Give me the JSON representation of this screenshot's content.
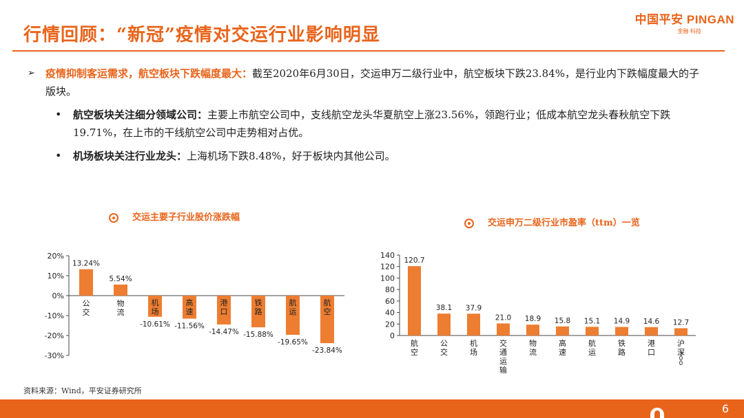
{
  "header": {
    "title": "行情回顾：“新冠”疫情对交运行业影响明显",
    "logo_main": "中国平安 PINGAN",
    "logo_sub": "金融·科技"
  },
  "bullets": {
    "main_heading": "疫情抑制客运需求，航空板块下跌幅度最大：",
    "main_text": "截至2020年6月30日，交运申万二级行业中，航空板块下跌23.84%，是行业内下跌幅度最大的子版块。",
    "sub1_heading": "航空板块关注细分领域公司：",
    "sub1_text": "主要上市航空公司中，支线航空龙头华夏航空上涨23.56%，领跑行业；低成本航空龙头春秋航空下跌19.71%，在上市的干线航空公司中走势相对占优。",
    "sub2_heading": "机场板块关注行业龙头：",
    "sub2_text": "上海机场下跌8.48%，好于板块内其他公司。"
  },
  "chart_data": [
    {
      "type": "bar",
      "title": "交运主要子行业股价涨跌幅",
      "categories": [
        "公交",
        "物流",
        "机场",
        "高速",
        "港口",
        "铁路",
        "航运",
        "航空"
      ],
      "values": [
        13.24,
        5.54,
        -10.61,
        -11.56,
        -14.47,
        -15.88,
        -19.65,
        -23.84
      ],
      "data_labels": [
        "13.24%",
        "5.54%",
        "-10.61%",
        "-11.56%",
        "-14.47%",
        "-15.88%",
        "-19.65%",
        "-23.84%"
      ],
      "ylim": [
        -30,
        20
      ],
      "yticks": [
        20,
        10,
        0,
        -10,
        -20,
        -30
      ],
      "ytick_labels": [
        "20%",
        "10%",
        "0%",
        "-10%",
        "-20%",
        "-30%"
      ],
      "color": "#ed7d31",
      "grid": false,
      "legend": false
    },
    {
      "type": "bar",
      "title": "交运申万二级行业市盈率（ttm）一览",
      "categories": [
        "航空",
        "公交",
        "机场",
        "交通运输",
        "物流",
        "高速",
        "航运",
        "铁路",
        "港口",
        "沪深300"
      ],
      "values": [
        120.7,
        38.1,
        37.9,
        21.0,
        18.9,
        15.8,
        15.1,
        14.9,
        14.6,
        12.7
      ],
      "data_labels": [
        "120.7",
        "38.1",
        "37.9",
        "21.0",
        "18.9",
        "15.8",
        "15.1",
        "14.9",
        "14.6",
        "12.7"
      ],
      "ylim": [
        0,
        140
      ],
      "yticks": [
        140,
        120,
        100,
        80,
        60,
        40,
        20,
        0
      ],
      "ytick_labels": [
        "140",
        "120",
        "100",
        "80",
        "60",
        "40",
        "20",
        "0"
      ],
      "color": "#ed7d31",
      "grid": false,
      "legend": false
    }
  ],
  "source": "资料来源：Wind，平安证券研究所",
  "footer": {
    "page_number": "6"
  },
  "colors": {
    "accent": "#e8641b",
    "bar": "#ed7d31"
  }
}
